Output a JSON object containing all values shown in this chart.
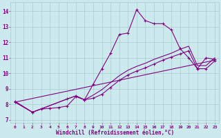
{
  "bg_color": "#cceaed",
  "grid_color": "#aacccc",
  "line_color": "#800080",
  "xlabel": "Windchill (Refroidissement éolien,°C)",
  "xlabel_color": "#800080",
  "tick_color": "#800080",
  "xlim": [
    -0.5,
    23.5
  ],
  "ylim": [
    6.8,
    14.6
  ],
  "yticks": [
    7,
    8,
    9,
    10,
    11,
    12,
    13,
    14
  ],
  "xticks": [
    0,
    1,
    2,
    3,
    4,
    5,
    6,
    7,
    8,
    9,
    10,
    11,
    12,
    13,
    14,
    15,
    16,
    17,
    18,
    19,
    20,
    21,
    22,
    23
  ],
  "series1_x": [
    0,
    2,
    3,
    4,
    5,
    6,
    7,
    8,
    9,
    10,
    11,
    12,
    13,
    14,
    15,
    16,
    17,
    18,
    19,
    20,
    21,
    22,
    23
  ],
  "series1_y": [
    8.2,
    7.5,
    7.7,
    7.75,
    7.8,
    7.9,
    8.5,
    8.3,
    9.3,
    10.3,
    11.3,
    12.5,
    12.6,
    14.1,
    13.4,
    13.2,
    13.2,
    12.8,
    11.6,
    11.0,
    10.3,
    11.0,
    10.9
  ],
  "series2_x": [
    0,
    23
  ],
  "series2_y": [
    8.15,
    10.85
  ],
  "series3_x": [
    0,
    2,
    6,
    7,
    8,
    9,
    10,
    11,
    12,
    13,
    14,
    15,
    16,
    17,
    18,
    19,
    20,
    21,
    22,
    23
  ],
  "series3_y": [
    8.15,
    7.5,
    8.35,
    8.55,
    8.3,
    8.4,
    8.65,
    9.1,
    9.55,
    9.9,
    10.15,
    10.35,
    10.6,
    10.85,
    11.05,
    11.25,
    11.45,
    10.3,
    10.3,
    10.8
  ],
  "series4_x": [
    0,
    2,
    6,
    7,
    8,
    9,
    10,
    11,
    12,
    13,
    14,
    15,
    16,
    17,
    18,
    19,
    20,
    21,
    22,
    23
  ],
  "series4_y": [
    8.15,
    7.5,
    8.35,
    8.55,
    8.3,
    8.6,
    8.95,
    9.4,
    9.85,
    10.2,
    10.45,
    10.65,
    10.9,
    11.1,
    11.3,
    11.55,
    11.75,
    10.5,
    10.5,
    11.0
  ]
}
